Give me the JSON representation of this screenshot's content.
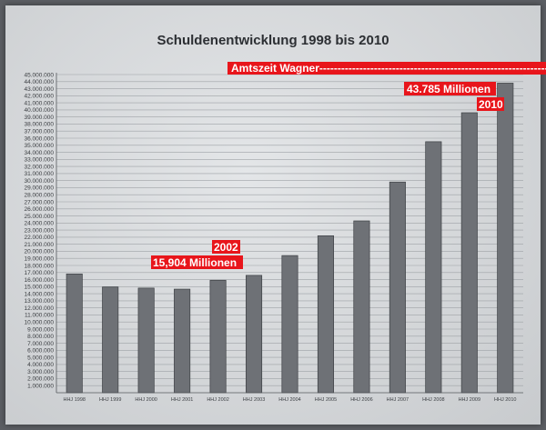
{
  "chart_data": {
    "type": "bar",
    "title": "Schuldenentwicklung 1998 bis 2010",
    "categories": [
      "HHJ 1998",
      "HHJ 1999",
      "HHJ 2000",
      "HHJ 2001",
      "HHJ 2002",
      "HHJ 2003",
      "HHJ 2004",
      "HHJ 2005",
      "HHJ 2006",
      "HHJ 2007",
      "HHJ 2008",
      "HHJ 2009",
      "HHJ 2010"
    ],
    "values": [
      16800000,
      14950000,
      14800000,
      14650000,
      15904000,
      16600000,
      19400000,
      22200000,
      24300000,
      29800000,
      35500000,
      39600000,
      43785000
    ],
    "ylim": [
      0,
      45000000
    ],
    "ytick_step": 1000000,
    "yticks_labels": [
      "1.000.000",
      "2.000.000",
      "3.000.000",
      "4.000.000",
      "5.000.000",
      "6.000.000",
      "7.000.000",
      "8.000.000",
      "9.000.000",
      "10.000.000",
      "11.000.000",
      "12.000.000",
      "13.000.000",
      "14.000.000",
      "15.000.000",
      "16.000.000",
      "17.000.000",
      "18.000.000",
      "19.000.000",
      "20.000.000",
      "21.000.000",
      "22.000.000",
      "23.000.000",
      "24.000.000",
      "25.000.000",
      "26.000.000",
      "27.000.000",
      "28.000.000",
      "29.000.000",
      "30.000.000",
      "31.000.000",
      "32.000.000",
      "33.000.000",
      "34.000.000",
      "35.000.000",
      "36.000.000",
      "37.000.000",
      "38.000.000",
      "39.000.000",
      "40.000.000",
      "41.000.000",
      "42.000.000",
      "43.000.000",
      "44.000.000",
      "45.000.000"
    ],
    "grid": true,
    "bar_color": "#6e7176",
    "annotation_color": "#e8151b",
    "annotations": {
      "amtszeit": "Amtszeit Wagner----------------------------------------------------------------",
      "label_2002_year": "2002",
      "label_2002_value": "15,904 Millionen",
      "label_2010_value": "43.785 Millionen",
      "label_2010_year": "2010"
    }
  }
}
